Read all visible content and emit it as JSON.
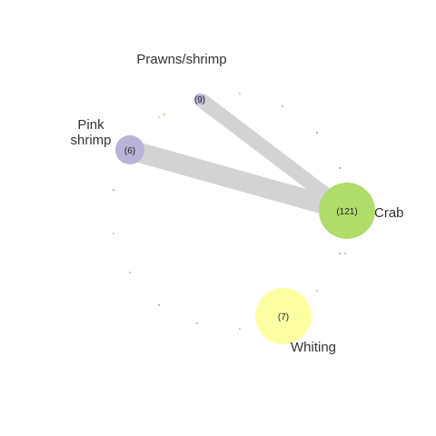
{
  "network": {
    "nodes": [
      {
        "id": "crab",
        "label_lines": [
          "Crab"
        ],
        "count": "(121)",
        "color": "#b0dc6a"
      },
      {
        "id": "whiting",
        "label_lines": [
          "Whiting"
        ],
        "count": "(7)",
        "color": "#ffffa4"
      },
      {
        "id": "pink_shrimp",
        "label_lines": [
          "Pink",
          "shrimp"
        ],
        "count": "(6)",
        "color": "#b8b4d8"
      },
      {
        "id": "prawns_shrimp",
        "label_lines": [
          "Prawns/shrimp"
        ],
        "count": "(9)",
        "color": "#b8b4d8"
      }
    ],
    "edges": [
      {
        "from": "prawns_shrimp",
        "to": "crab",
        "color": "#d3d3d3"
      },
      {
        "from": "pink_shrimp",
        "to": "crab",
        "color": "#d3d3d3"
      }
    ],
    "minor_dots": [
      {
        "color": "#d9a0c8"
      },
      {
        "color": "#8a8ab8"
      },
      {
        "color": "#c07070"
      },
      {
        "color": "#e06060"
      },
      {
        "color": "#c07070"
      },
      {
        "color": "#e0a0a0"
      },
      {
        "color": "#d0c0a0"
      },
      {
        "color": "#e0a060"
      },
      {
        "color": "#a090c0"
      },
      {
        "color": "#808080"
      },
      {
        "color": "#c0a0a0"
      },
      {
        "color": "#e0a040"
      },
      {
        "color": "#7090c0"
      },
      {
        "color": "#c0c0c0"
      },
      {
        "color": "#f0a050"
      },
      {
        "color": "#c0a0d0"
      }
    ]
  }
}
